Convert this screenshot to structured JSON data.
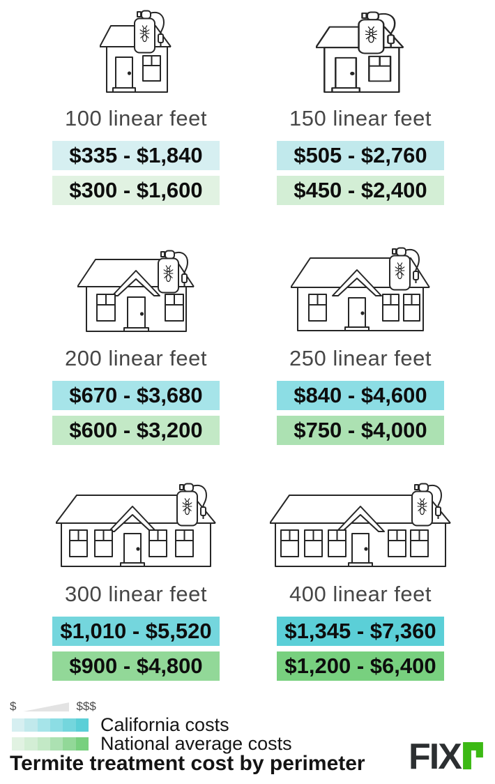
{
  "title": "Termite treatment cost by perimeter",
  "legend": {
    "scale_min_label": "$",
    "scale_max_label": "$$$",
    "series": [
      {
        "label": "California costs",
        "steps": [
          "#d6eff1",
          "#c1e9ec",
          "#a6e4e9",
          "#8cdde4",
          "#74d6dd",
          "#5bcfd7"
        ]
      },
      {
        "label": "National average costs",
        "steps": [
          "#e1f2e2",
          "#d3eed5",
          "#c3e9c6",
          "#ace1b2",
          "#92d898",
          "#78d07f"
        ]
      }
    ]
  },
  "logo": {
    "dark_text": "FIX",
    "green_glyph": "r",
    "dark_color": "#2c2f31",
    "green_color": "#3cb914"
  },
  "cells": [
    {
      "label": "100 linear feet",
      "california_cost": "$335 - $1,840",
      "national_cost": "$300 - $1,600",
      "california_color": "#d6eff1",
      "national_color": "#e1f2e2"
    },
    {
      "label": "150 linear feet",
      "california_cost": "$505 - $2,760",
      "national_cost": "$450 - $2,400",
      "california_color": "#c1e9ec",
      "national_color": "#d3eed5"
    },
    {
      "label": "200 linear feet",
      "california_cost": "$670 - $3,680",
      "national_cost": "$600 - $3,200",
      "california_color": "#a6e4e9",
      "national_color": "#c3e9c6"
    },
    {
      "label": "250 linear feet",
      "california_cost": "$840 - $4,600",
      "national_cost": "$750 - $4,000",
      "california_color": "#8cdde4",
      "national_color": "#ace1b2"
    },
    {
      "label": "300 linear feet",
      "california_cost": "$1,010 - $5,520",
      "national_cost": "$900 - $4,800",
      "california_color": "#74d6dd",
      "national_color": "#92d898"
    },
    {
      "label": "400 linear feet",
      "california_cost": "$1,345 - $7,360",
      "national_cost": "$1,200 - $6,400",
      "california_color": "#5bcfd7",
      "national_color": "#78d07f"
    }
  ],
  "chart_data": {
    "type": "table",
    "title": "Termite treatment cost by perimeter",
    "categories": [
      "100 linear feet",
      "150 linear feet",
      "200 linear feet",
      "250 linear feet",
      "300 linear feet",
      "400 linear feet"
    ],
    "series": [
      {
        "name": "California costs",
        "low": [
          335,
          505,
          670,
          840,
          1010,
          1345
        ],
        "high": [
          1840,
          2760,
          3680,
          4600,
          5520,
          7360
        ]
      },
      {
        "name": "National average costs",
        "low": [
          300,
          450,
          600,
          750,
          900,
          1200
        ],
        "high": [
          1600,
          2400,
          3200,
          4000,
          4800,
          6400
        ]
      }
    ],
    "units": "USD",
    "legend_position": "bottom-left"
  }
}
